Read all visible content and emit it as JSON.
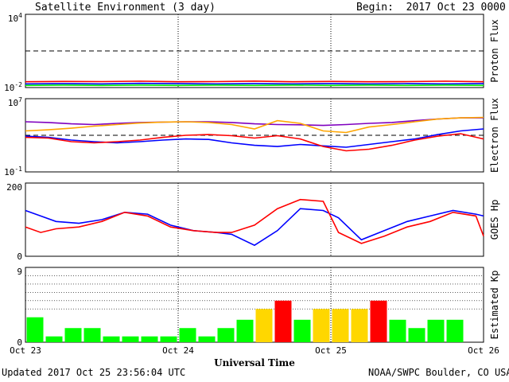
{
  "header": {
    "title": "Satellite Environment (3 day)",
    "begin": "Begin:  2017 Oct 23 0000 UTC"
  },
  "footer": {
    "updated": "Updated 2017 Oct 25 23:56:04 UTC",
    "credit": "NOAA/SWPC Boulder, CO USA"
  },
  "colors": {
    "red": "#ff0000",
    "blue": "#0000ff",
    "green": "#00ff00",
    "purple": "#7f00bf",
    "orange": "#ffa500",
    "kp_green": "#00ff00",
    "kp_yellow": "#ffd700",
    "kp_red": "#ff0000"
  },
  "chart_data": [
    {
      "type": "line",
      "ylabel": "Proton Flux",
      "yscale": "log",
      "ylim": [
        0.01,
        10000
      ],
      "y_tick_labels": [
        "10^4",
        "10^-2"
      ],
      "threshold": 10,
      "x_days": [
        0,
        3
      ],
      "series": [
        {
          "color": "red",
          "x": [
            0,
            0.25,
            0.5,
            0.75,
            1,
            1.25,
            1.5,
            1.75,
            2,
            2.25,
            2.5,
            2.75,
            3
          ],
          "y": [
            0.03,
            0.032,
            0.031,
            0.033,
            0.03,
            0.031,
            0.034,
            0.03,
            0.032,
            0.03,
            0.031,
            0.033,
            0.03
          ]
        },
        {
          "color": "blue",
          "x": [
            0,
            0.25,
            0.5,
            0.75,
            1,
            1.25,
            1.5,
            1.75,
            2,
            2.25,
            2.5,
            2.75,
            3
          ],
          "y": [
            0.02,
            0.021,
            0.02,
            0.022,
            0.021,
            0.02,
            0.021,
            0.02,
            0.021,
            0.02,
            0.021,
            0.02,
            0.021
          ]
        },
        {
          "color": "green",
          "x": [
            0,
            0.25,
            0.5,
            0.75,
            1,
            1.25,
            1.5,
            1.75,
            2,
            2.25,
            2.5,
            2.75,
            3
          ],
          "y": [
            0.015,
            0.016,
            0.015,
            0.016,
            0.015,
            0.016,
            0.015,
            0.016,
            0.015,
            0.016,
            0.015,
            0.016,
            0.015
          ]
        }
      ]
    },
    {
      "type": "line",
      "ylabel": "Electron Flux",
      "yscale": "log",
      "ylim": [
        0.1,
        10000000
      ],
      "y_tick_labels": [
        "10^7",
        "10^-1"
      ],
      "threshold": 1000,
      "x_days": [
        0,
        3
      ],
      "series": [
        {
          "color": "purple",
          "x": [
            0,
            0.15,
            0.3,
            0.45,
            0.6,
            0.75,
            0.9,
            1.05,
            1.2,
            1.35,
            1.5,
            1.65,
            1.8,
            1.95,
            2.1,
            2.25,
            2.4,
            2.55,
            2.7,
            2.85,
            3
          ],
          "y": [
            30000,
            25000,
            18000,
            15000,
            20000,
            25000,
            28000,
            30000,
            30000,
            25000,
            18000,
            15000,
            14000,
            12000,
            15000,
            20000,
            25000,
            40000,
            60000,
            80000,
            80000
          ]
        },
        {
          "color": "orange",
          "x": [
            0,
            0.15,
            0.3,
            0.45,
            0.6,
            0.75,
            0.9,
            1.05,
            1.2,
            1.35,
            1.5,
            1.65,
            1.8,
            1.95,
            2.1,
            2.25,
            2.4,
            2.55,
            2.7,
            2.85,
            3
          ],
          "y": [
            3000,
            4000,
            6000,
            10000,
            15000,
            22000,
            28000,
            30000,
            25000,
            15000,
            5000,
            40000,
            20000,
            3000,
            2000,
            8000,
            15000,
            30000,
            60000,
            80000,
            90000
          ]
        },
        {
          "color": "blue",
          "x": [
            0,
            0.15,
            0.3,
            0.45,
            0.6,
            0.75,
            0.9,
            1.05,
            1.2,
            1.35,
            1.5,
            1.65,
            1.8,
            1.95,
            2.1,
            2.25,
            2.4,
            2.55,
            2.7,
            2.85,
            3
          ],
          "y": [
            800,
            600,
            300,
            200,
            150,
            200,
            300,
            400,
            350,
            150,
            80,
            60,
            100,
            70,
            50,
            100,
            200,
            400,
            1200,
            3000,
            5000
          ]
        },
        {
          "color": "red",
          "x": [
            0,
            0.15,
            0.3,
            0.45,
            0.6,
            0.75,
            0.9,
            1.05,
            1.2,
            1.35,
            1.5,
            1.65,
            1.8,
            1.95,
            2.1,
            2.25,
            2.4,
            2.55,
            2.7,
            2.85,
            3
          ],
          "y": [
            600,
            500,
            200,
            150,
            200,
            300,
            600,
            1000,
            1200,
            900,
            500,
            900,
            400,
            60,
            20,
            30,
            80,
            300,
            800,
            1500,
            400
          ]
        }
      ]
    },
    {
      "type": "line",
      "ylabel": "GOES Hp",
      "ylim": [
        0,
        200
      ],
      "y_tick_labels": [
        "200",
        "0"
      ],
      "x_days": [
        0,
        3
      ],
      "series": [
        {
          "color": "blue",
          "x": [
            0,
            0.1,
            0.2,
            0.35,
            0.5,
            0.65,
            0.8,
            0.95,
            1.1,
            1.25,
            1.35,
            1.5,
            1.65,
            1.8,
            1.95,
            2.05,
            2.2,
            2.35,
            2.5,
            2.65,
            2.8,
            2.95,
            3
          ],
          "y": [
            125,
            110,
            95,
            90,
            100,
            120,
            115,
            85,
            70,
            65,
            60,
            30,
            70,
            130,
            125,
            105,
            45,
            70,
            95,
            110,
            125,
            115,
            110
          ]
        },
        {
          "color": "red",
          "x": [
            0,
            0.1,
            0.2,
            0.35,
            0.5,
            0.65,
            0.8,
            0.95,
            1.1,
            1.25,
            1.35,
            1.5,
            1.65,
            1.8,
            1.95,
            2.05,
            2.2,
            2.35,
            2.5,
            2.65,
            2.8,
            2.95,
            3
          ],
          "y": [
            80,
            65,
            75,
            80,
            95,
            120,
            110,
            80,
            70,
            65,
            65,
            85,
            130,
            155,
            150,
            65,
            35,
            55,
            80,
            95,
            120,
            110,
            55
          ]
        }
      ]
    },
    {
      "type": "bar",
      "ylabel": "Estimated Kp",
      "ylim": [
        0,
        9
      ],
      "y_tick_labels": [
        "9",
        "0"
      ],
      "bin_hours": 3,
      "values": [
        3,
        0.7,
        1.7,
        1.7,
        0.7,
        0.7,
        0.7,
        0.7,
        1.7,
        0.7,
        1.7,
        2.7,
        4,
        5,
        2.7,
        4,
        4,
        4,
        5,
        2.7,
        1.7,
        2.7,
        2.7,
        0
      ],
      "bar_colors": [
        "green",
        "green",
        "green",
        "green",
        "green",
        "green",
        "green",
        "green",
        "green",
        "green",
        "green",
        "green",
        "yellow",
        "red",
        "green",
        "yellow",
        "yellow",
        "yellow",
        "red",
        "green",
        "green",
        "green",
        "green",
        "green"
      ]
    }
  ],
  "x_axis": {
    "tick_labels": [
      "Oct 23",
      "Oct 24",
      "Oct 25",
      "Oct 26"
    ],
    "label": "Universal Time"
  }
}
